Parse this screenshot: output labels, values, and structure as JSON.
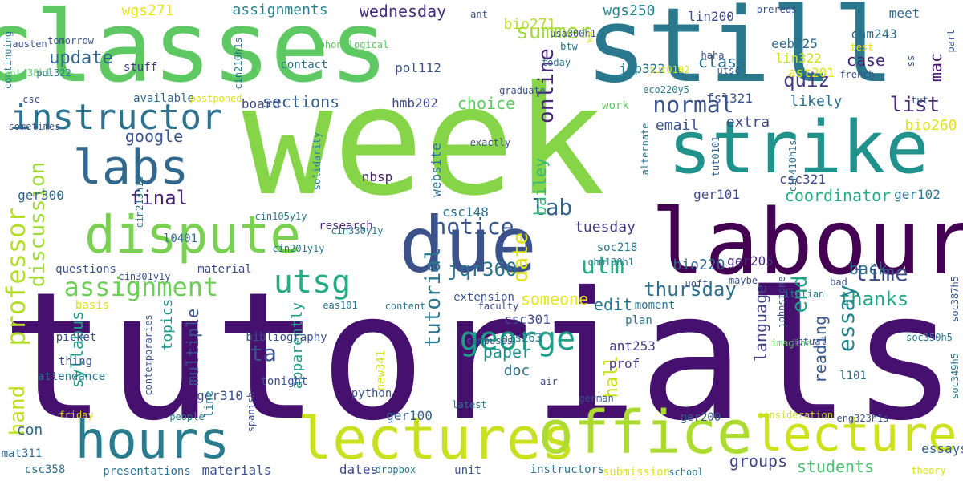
{
  "words": [
    {
      "text": "tutorials",
      "color": "#45106e"
    },
    {
      "text": "week",
      "color": "#86d549"
    },
    {
      "text": "classes",
      "color": "#5ec962"
    },
    {
      "text": "still",
      "color": "#2a788e"
    },
    {
      "text": "labour",
      "color": "#440154"
    },
    {
      "text": "due",
      "color": "#3b528b"
    },
    {
      "text": "strike",
      "color": "#21918c"
    },
    {
      "text": "dispute",
      "color": "#7ad151"
    },
    {
      "text": "lectures",
      "color": "#c8e020"
    },
    {
      "text": "office",
      "color": "#addc30"
    },
    {
      "text": "hours",
      "color": "#287c8e"
    },
    {
      "text": "lecture",
      "color": "#cde11d"
    },
    {
      "text": "labs",
      "color": "#31688e"
    },
    {
      "text": "instructor",
      "color": "#2c728e"
    },
    {
      "text": "george",
      "color": "#1f9e89"
    },
    {
      "text": "utsg",
      "color": "#26ad81"
    },
    {
      "text": "assignment",
      "color": "#6ece58"
    },
    {
      "text": "professor",
      "color": "#b5de2b"
    },
    {
      "text": "hand",
      "color": "#c0df25"
    },
    {
      "text": "notice",
      "color": "#39568c"
    },
    {
      "text": "utm",
      "color": "#26ad81"
    },
    {
      "text": "lab",
      "color": "#34618d"
    },
    {
      "text": "time",
      "color": "#3e4a89"
    },
    {
      "text": "normal",
      "color": "#3b528b"
    },
    {
      "text": "final",
      "color": "#482576"
    },
    {
      "text": "thursday",
      "color": "#2d708e"
    },
    {
      "text": "thanks",
      "color": "#22a884"
    },
    {
      "text": "essay",
      "color": "#25858e"
    },
    {
      "text": "online",
      "color": "#482878"
    },
    {
      "text": "ta",
      "color": "#3b528b"
    },
    {
      "text": "summer",
      "color": "#a0da39"
    },
    {
      "text": "discussion",
      "color": "#a0da39"
    },
    {
      "text": "list",
      "color": "#472d7b"
    },
    {
      "text": "quiz",
      "color": "#443983"
    },
    {
      "text": "update",
      "color": "#31688e"
    },
    {
      "text": "google",
      "color": "#3b528b"
    },
    {
      "text": "tutorial",
      "color": "#2a788e"
    },
    {
      "text": "end",
      "color": "#20a486"
    },
    {
      "text": "date",
      "color": "#e0e318"
    },
    {
      "text": "jqr360",
      "color": "#2c728e"
    },
    {
      "text": "coordinator",
      "color": "#26ad81"
    },
    {
      "text": "class",
      "color": "#2e6f8e"
    },
    {
      "text": "case",
      "color": "#482878"
    },
    {
      "text": "mac",
      "color": "#481769"
    },
    {
      "text": "edit",
      "color": "#2a788e"
    },
    {
      "text": "reading",
      "color": "#375a8c"
    },
    {
      "text": "hall",
      "color": "#c8e020"
    },
    {
      "text": "back",
      "color": "#2e6f8e"
    },
    {
      "text": "sections",
      "color": "#355f8d"
    },
    {
      "text": "choice",
      "color": "#5ec962"
    },
    {
      "text": "wednesday",
      "color": "#472d7b"
    },
    {
      "text": "assignments",
      "color": "#27808e"
    },
    {
      "text": "likely",
      "color": "#2d708e"
    },
    {
      "text": "extra",
      "color": "#3e4a89"
    },
    {
      "text": "tuesday",
      "color": "#433e85"
    },
    {
      "text": "topics",
      "color": "#1f988b"
    },
    {
      "text": "multiple",
      "color": "#3b528b"
    },
    {
      "text": "language",
      "color": "#424086"
    },
    {
      "text": "apparently",
      "color": "#1f9e89"
    },
    {
      "text": "syllabus",
      "color": "#1fa188"
    },
    {
      "text": "bailey",
      "color": "#35b779"
    },
    {
      "text": "someone",
      "color": "#e5e419"
    },
    {
      "text": "groups",
      "color": "#414487"
    },
    {
      "text": "students",
      "color": "#4ac16d"
    },
    {
      "text": "essays",
      "color": "#34618d"
    },
    {
      "text": "email",
      "color": "#3b528b"
    },
    {
      "text": "wgs271",
      "color": "#e5e419"
    },
    {
      "text": "wgs250",
      "color": "#25858e"
    },
    {
      "text": "bio271",
      "color": "#b5de2b"
    },
    {
      "text": "bio260",
      "color": "#dde318"
    },
    {
      "text": "bio220",
      "color": "#31688e"
    },
    {
      "text": "doc",
      "color": "#2d708e"
    },
    {
      "text": "paper",
      "color": "#21918c"
    },
    {
      "text": "con",
      "color": "#31688e"
    },
    {
      "text": "prof",
      "color": "#443a83"
    },
    {
      "text": "csc301",
      "color": "#3e4a89"
    },
    {
      "text": "ant253",
      "color": "#453882"
    },
    {
      "text": "lin200",
      "color": "#3e4a89"
    },
    {
      "text": "nbsp",
      "color": "#481f70"
    },
    {
      "text": "csc148",
      "color": "#2e6f8e"
    },
    {
      "text": "pol112",
      "color": "#3b528b"
    },
    {
      "text": "hmb202",
      "color": "#3e4a89"
    },
    {
      "text": "website",
      "color": "#2d708e"
    },
    {
      "text": "jcp322",
      "color": "#2a788e"
    },
    {
      "text": "meet",
      "color": "#31688e"
    },
    {
      "text": "chm243",
      "color": "#2d708e"
    },
    {
      "text": "eeb225",
      "color": "#31688e"
    },
    {
      "text": "lin322",
      "color": "#c8e020"
    },
    {
      "text": "ast201",
      "color": "#dde318"
    },
    {
      "text": "fsl321",
      "color": "#3b528b"
    },
    {
      "text": "csc321",
      "color": "#3e4a89"
    },
    {
      "text": "ger101",
      "color": "#3e4a89"
    },
    {
      "text": "ger102",
      "color": "#2a788e"
    },
    {
      "text": "ger205",
      "color": "#482878"
    },
    {
      "text": "ger300",
      "color": "#31688e"
    },
    {
      "text": "ger100",
      "color": "#355f8d"
    },
    {
      "text": "ger200",
      "color": "#375a8c"
    },
    {
      "text": "ger310",
      "color": "#3b528b"
    },
    {
      "text": "presentations",
      "color": "#2d708e"
    },
    {
      "text": "dates",
      "color": "#3e4a89"
    },
    {
      "text": "unit",
      "color": "#3b528b"
    },
    {
      "text": "materials",
      "color": "#3b528b"
    },
    {
      "text": "instructors",
      "color": "#2a788e"
    },
    {
      "text": "submission",
      "color": "#dde318"
    },
    {
      "text": "csc358",
      "color": "#2d708e"
    },
    {
      "text": "mat311",
      "color": "#31688e"
    },
    {
      "text": "material",
      "color": "#3e4a89"
    },
    {
      "text": "questions",
      "color": "#3b528b"
    },
    {
      "text": "l0401",
      "color": "#2d708e"
    },
    {
      "text": "research",
      "color": "#482878"
    },
    {
      "text": "board",
      "color": "#3e4a89"
    },
    {
      "text": "available",
      "color": "#31688e"
    },
    {
      "text": "stuff",
      "color": "#453882"
    },
    {
      "text": "contact",
      "color": "#2d708e"
    },
    {
      "text": "extension",
      "color": "#3b528b"
    },
    {
      "text": "l101",
      "color": "#2d708e"
    },
    {
      "text": "plan",
      "color": "#2a788e"
    },
    {
      "text": "work",
      "color": "#5ec962"
    },
    {
      "text": "python",
      "color": "#3b528b"
    },
    {
      "text": "moment",
      "color": "#2d708e"
    },
    {
      "text": "soc218",
      "color": "#2a788e"
    },
    {
      "text": "his263",
      "color": "#2a788e"
    },
    {
      "text": "new341",
      "color": "#d8e219"
    },
    {
      "text": "basis",
      "color": "#d8e219"
    },
    {
      "text": "picket",
      "color": "#3e4a89"
    },
    {
      "text": "thing",
      "color": "#3b528b"
    },
    {
      "text": "attendance",
      "color": "#2a788e"
    },
    {
      "text": "bibliography",
      "color": "#3b528b"
    },
    {
      "text": "tonight",
      "color": "#3b528b"
    },
    {
      "text": "spanish",
      "color": "#3e4a89"
    },
    {
      "text": "line",
      "color": "#2a788e"
    },
    {
      "text": "people",
      "color": "#2a788e"
    },
    {
      "text": "friday",
      "color": "#d8e219"
    },
    {
      "text": "consideration",
      "color": "#c0df25"
    },
    {
      "text": "uoft",
      "color": "#3b528b"
    },
    {
      "text": "tut0101",
      "color": "#31688e"
    },
    {
      "text": "cin410h1s",
      "color": "#2d708e"
    },
    {
      "text": "cin213h1s",
      "color": "#2a788e"
    },
    {
      "text": "cin210h1s",
      "color": "#2a788e"
    },
    {
      "text": "cin201y1y",
      "color": "#2a788e"
    },
    {
      "text": "cin301y1y",
      "color": "#3b528b"
    },
    {
      "text": "cin105y1y",
      "color": "#2a788e"
    },
    {
      "text": "cin330y1y",
      "color": "#2a788e"
    },
    {
      "text": "eas101",
      "color": "#2d708e"
    },
    {
      "text": "content",
      "color": "#2a788e"
    },
    {
      "text": "faculty",
      "color": "#3e4a89"
    },
    {
      "text": "campuses",
      "color": "#3b528b"
    },
    {
      "text": "air",
      "color": "#3e4a89"
    },
    {
      "text": "latest",
      "color": "#2a788e"
    },
    {
      "text": "italian",
      "color": "#2a788e"
    },
    {
      "text": "bad",
      "color": "#3b528b"
    },
    {
      "text": "maybe",
      "color": "#3b528b"
    },
    {
      "text": "chm138h1",
      "color": "#2a788e"
    },
    {
      "text": "german",
      "color": "#3b528b"
    },
    {
      "text": "dropbox",
      "color": "#2a788e"
    },
    {
      "text": "school",
      "color": "#2a788e"
    },
    {
      "text": "theory",
      "color": "#d8e219"
    },
    {
      "text": "imagine",
      "color": "#5ec962"
    },
    {
      "text": "actual",
      "color": "#3b528b"
    },
    {
      "text": "johnstone",
      "color": "#3b528b"
    },
    {
      "text": "soc350h5",
      "color": "#2a788e"
    },
    {
      "text": "soc349h5",
      "color": "#2a788e"
    },
    {
      "text": "soc387h5",
      "color": "#3b528b"
    },
    {
      "text": "eng323h1s",
      "color": "#3b528b"
    },
    {
      "text": "alternate",
      "color": "#2a788e"
    },
    {
      "text": "exactly",
      "color": "#3b528b"
    },
    {
      "text": "solidarity",
      "color": "#2a788e"
    },
    {
      "text": "contemporaries",
      "color": "#3b528b"
    },
    {
      "text": "sometimes",
      "color": "#3b528b"
    },
    {
      "text": "postponed",
      "color": "#d8e219"
    },
    {
      "text": "csc",
      "color": "#3b528b"
    },
    {
      "text": "continuing",
      "color": "#2a788e"
    },
    {
      "text": "ant438h1",
      "color": "#5ec962"
    },
    {
      "text": "pol322",
      "color": "#2a788e"
    },
    {
      "text": "austen",
      "color": "#3b528b"
    },
    {
      "text": "tomorrow",
      "color": "#3b528b"
    },
    {
      "text": "phonological",
      "color": "#5ec962"
    },
    {
      "text": "ant",
      "color": "#3b528b"
    },
    {
      "text": "usa300h1",
      "color": "#3b528b"
    },
    {
      "text": "btw",
      "color": "#2a788e"
    },
    {
      "text": "wa",
      "color": "#d8e219"
    },
    {
      "text": "today",
      "color": "#2a788e"
    },
    {
      "text": "graduate",
      "color": "#3b528b"
    },
    {
      "text": "tut0102",
      "color": "#d8e219"
    },
    {
      "text": "eco220y5",
      "color": "#2a788e"
    },
    {
      "text": "utsc",
      "color": "#3b528b"
    },
    {
      "text": "haha",
      "color": "#3b528b"
    },
    {
      "text": "french",
      "color": "#3b528b"
    },
    {
      "text": "test",
      "color": "#d8e219"
    },
    {
      "text": "ss",
      "color": "#3b528b"
    },
    {
      "text": "part",
      "color": "#3b528b"
    },
    {
      "text": "prereqs",
      "color": "#3b528b"
    },
    {
      "text": "tut",
      "color": "#3b528b"
    },
    {
      "text": "phla11",
      "color": "#3b528b"
    },
    {
      "text": "deadline",
      "color": "#2a788e"
    },
    {
      "text": "well",
      "color": "#3b528b"
    },
    {
      "text": "eng236h1s",
      "color": "#2a788e"
    },
    {
      "text": "act247",
      "color": "#3b528b"
    },
    {
      "text": "til",
      "color": "#d8e219"
    }
  ]
}
